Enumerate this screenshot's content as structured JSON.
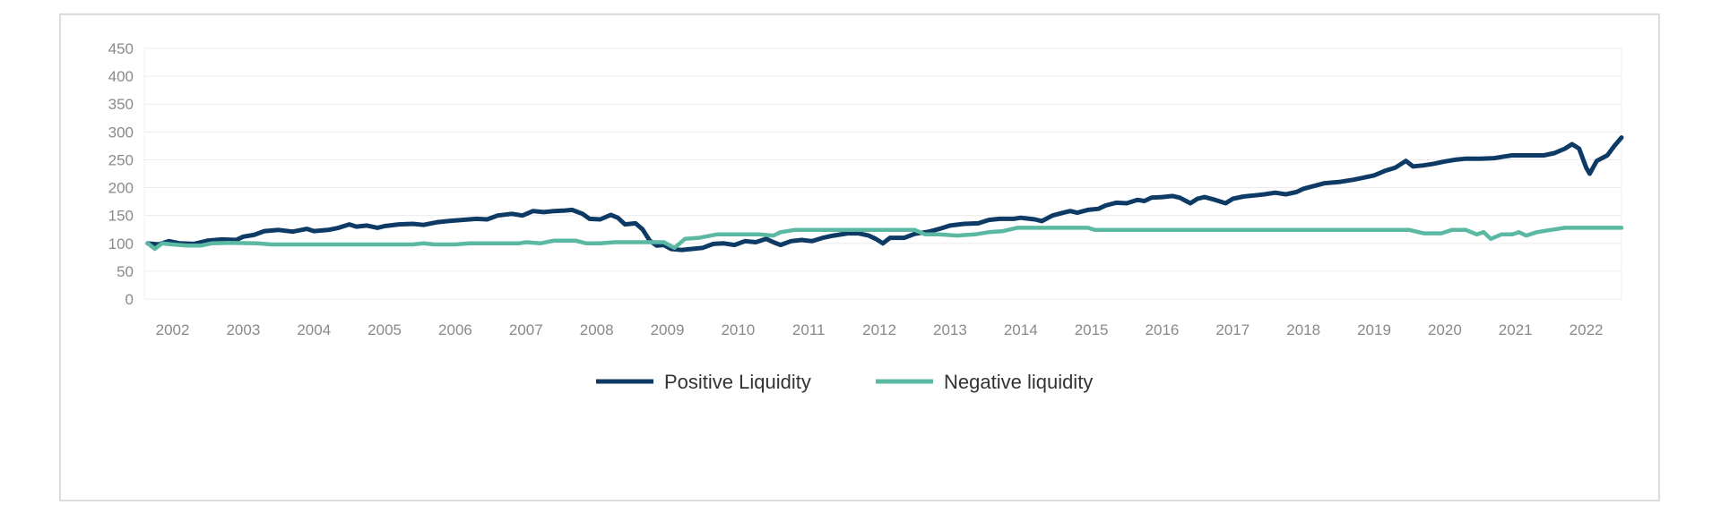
{
  "chart_data": {
    "type": "line",
    "title": "",
    "xlabel": "",
    "ylabel": "",
    "ylim": [
      0,
      450
    ],
    "yticks": [
      0,
      50,
      100,
      150,
      200,
      250,
      300,
      350,
      400,
      450
    ],
    "xlim": [
      2001.6,
      2022.5
    ],
    "xtick_labels": [
      "2002",
      "2003",
      "2004",
      "2005",
      "2006",
      "2007",
      "2008",
      "2009",
      "2010",
      "2011",
      "2012",
      "2013",
      "2014",
      "2015",
      "2016",
      "2017",
      "2018",
      "2019",
      "2020",
      "2021",
      "2022"
    ],
    "grid": "horizontal",
    "legend": "bottom-center",
    "series": [
      {
        "name": "Positive Liquidity",
        "color": "#0d3b66",
        "points": [
          [
            2001.65,
            100
          ],
          [
            2001.8,
            98
          ],
          [
            2001.95,
            104
          ],
          [
            2002.1,
            100
          ],
          [
            2002.3,
            99
          ],
          [
            2002.5,
            105
          ],
          [
            2002.7,
            107
          ],
          [
            2002.9,
            106
          ],
          [
            2003.0,
            112
          ],
          [
            2003.15,
            115
          ],
          [
            2003.3,
            122
          ],
          [
            2003.5,
            124
          ],
          [
            2003.7,
            121
          ],
          [
            2003.9,
            126
          ],
          [
            2004.0,
            122
          ],
          [
            2004.2,
            124
          ],
          [
            2004.35,
            128
          ],
          [
            2004.5,
            134
          ],
          [
            2004.6,
            130
          ],
          [
            2004.75,
            132
          ],
          [
            2004.9,
            128
          ],
          [
            2005.0,
            131
          ],
          [
            2005.2,
            134
          ],
          [
            2005.4,
            135
          ],
          [
            2005.55,
            133
          ],
          [
            2005.75,
            138
          ],
          [
            2005.9,
            140
          ],
          [
            2006.1,
            142
          ],
          [
            2006.3,
            144
          ],
          [
            2006.45,
            143
          ],
          [
            2006.6,
            150
          ],
          [
            2006.8,
            153
          ],
          [
            2006.95,
            150
          ],
          [
            2007.1,
            158
          ],
          [
            2007.25,
            156
          ],
          [
            2007.4,
            158
          ],
          [
            2007.55,
            159
          ],
          [
            2007.65,
            160
          ],
          [
            2007.8,
            153
          ],
          [
            2007.9,
            144
          ],
          [
            2008.05,
            143
          ],
          [
            2008.2,
            151
          ],
          [
            2008.3,
            146
          ],
          [
            2008.4,
            134
          ],
          [
            2008.55,
            136
          ],
          [
            2008.65,
            125
          ],
          [
            2008.75,
            105
          ],
          [
            2008.85,
            96
          ],
          [
            2008.95,
            97
          ],
          [
            2009.05,
            90
          ],
          [
            2009.2,
            88
          ],
          [
            2009.35,
            90
          ],
          [
            2009.5,
            92
          ],
          [
            2009.65,
            99
          ],
          [
            2009.8,
            100
          ],
          [
            2009.95,
            97
          ],
          [
            2010.1,
            104
          ],
          [
            2010.25,
            102
          ],
          [
            2010.4,
            108
          ],
          [
            2010.5,
            102
          ],
          [
            2010.6,
            97
          ],
          [
            2010.75,
            104
          ],
          [
            2010.9,
            106
          ],
          [
            2011.05,
            104
          ],
          [
            2011.2,
            110
          ],
          [
            2011.35,
            114
          ],
          [
            2011.55,
            118
          ],
          [
            2011.7,
            118
          ],
          [
            2011.85,
            114
          ],
          [
            2011.95,
            108
          ],
          [
            2012.05,
            100
          ],
          [
            2012.15,
            110
          ],
          [
            2012.35,
            110
          ],
          [
            2012.5,
            117
          ],
          [
            2012.7,
            121
          ],
          [
            2012.85,
            126
          ],
          [
            2013.0,
            132
          ],
          [
            2013.2,
            135
          ],
          [
            2013.4,
            136
          ],
          [
            2013.55,
            142
          ],
          [
            2013.7,
            144
          ],
          [
            2013.9,
            144
          ],
          [
            2014.0,
            146
          ],
          [
            2014.2,
            143
          ],
          [
            2014.3,
            140
          ],
          [
            2014.45,
            150
          ],
          [
            2014.6,
            155
          ],
          [
            2014.7,
            158
          ],
          [
            2014.8,
            155
          ],
          [
            2014.95,
            160
          ],
          [
            2015.1,
            162
          ],
          [
            2015.2,
            168
          ],
          [
            2015.35,
            173
          ],
          [
            2015.5,
            172
          ],
          [
            2015.65,
            178
          ],
          [
            2015.75,
            176
          ],
          [
            2015.85,
            182
          ],
          [
            2016.0,
            183
          ],
          [
            2016.15,
            185
          ],
          [
            2016.25,
            182
          ],
          [
            2016.4,
            172
          ],
          [
            2016.5,
            180
          ],
          [
            2016.6,
            183
          ],
          [
            2016.75,
            178
          ],
          [
            2016.9,
            172
          ],
          [
            2017.0,
            180
          ],
          [
            2017.15,
            184
          ],
          [
            2017.3,
            186
          ],
          [
            2017.45,
            188
          ],
          [
            2017.6,
            191
          ],
          [
            2017.75,
            188
          ],
          [
            2017.9,
            192
          ],
          [
            2018.0,
            198
          ],
          [
            2018.15,
            203
          ],
          [
            2018.3,
            208
          ],
          [
            2018.5,
            210
          ],
          [
            2018.7,
            214
          ],
          [
            2018.85,
            218
          ],
          [
            2019.0,
            222
          ],
          [
            2019.15,
            230
          ],
          [
            2019.3,
            236
          ],
          [
            2019.45,
            248
          ],
          [
            2019.55,
            238
          ],
          [
            2019.7,
            240
          ],
          [
            2019.85,
            243
          ],
          [
            2020.0,
            247
          ],
          [
            2020.15,
            250
          ],
          [
            2020.3,
            252
          ],
          [
            2020.5,
            252
          ],
          [
            2020.7,
            253
          ],
          [
            2020.85,
            256
          ],
          [
            2020.95,
            258
          ],
          [
            2021.1,
            258
          ],
          [
            2021.25,
            258
          ],
          [
            2021.4,
            258
          ],
          [
            2021.55,
            262
          ],
          [
            2021.7,
            270
          ],
          [
            2021.8,
            278
          ],
          [
            2021.9,
            270
          ],
          [
            2022.0,
            236
          ],
          [
            2022.05,
            225
          ],
          [
            2022.15,
            248
          ],
          [
            2022.3,
            258
          ],
          [
            2022.4,
            275
          ],
          [
            2022.5,
            290
          ]
        ]
      },
      {
        "name": "Negative liquidity",
        "color": "#5bb9a3",
        "points": [
          [
            2001.65,
            100
          ],
          [
            2001.75,
            90
          ],
          [
            2001.85,
            100
          ],
          [
            2002.0,
            98
          ],
          [
            2002.2,
            96
          ],
          [
            2002.4,
            96
          ],
          [
            2002.55,
            100
          ],
          [
            2002.8,
            101
          ],
          [
            2003.2,
            100
          ],
          [
            2003.4,
            98
          ],
          [
            2003.8,
            98
          ],
          [
            2004.2,
            98
          ],
          [
            2004.6,
            98
          ],
          [
            2005.0,
            98
          ],
          [
            2005.4,
            98
          ],
          [
            2005.55,
            100
          ],
          [
            2005.7,
            98
          ],
          [
            2006.0,
            98
          ],
          [
            2006.2,
            100
          ],
          [
            2006.6,
            100
          ],
          [
            2006.9,
            100
          ],
          [
            2007.0,
            102
          ],
          [
            2007.2,
            100
          ],
          [
            2007.4,
            105
          ],
          [
            2007.7,
            105
          ],
          [
            2007.85,
            100
          ],
          [
            2008.05,
            100
          ],
          [
            2008.25,
            102
          ],
          [
            2008.6,
            102
          ],
          [
            2008.95,
            102
          ],
          [
            2009.1,
            92
          ],
          [
            2009.25,
            108
          ],
          [
            2009.45,
            110
          ],
          [
            2009.7,
            116
          ],
          [
            2010.0,
            116
          ],
          [
            2010.3,
            116
          ],
          [
            2010.5,
            114
          ],
          [
            2010.6,
            120
          ],
          [
            2010.8,
            124
          ],
          [
            2011.1,
            124
          ],
          [
            2011.5,
            124
          ],
          [
            2011.9,
            124
          ],
          [
            2012.3,
            124
          ],
          [
            2012.5,
            124
          ],
          [
            2012.65,
            116
          ],
          [
            2012.85,
            116
          ],
          [
            2013.1,
            114
          ],
          [
            2013.35,
            116
          ],
          [
            2013.55,
            120
          ],
          [
            2013.75,
            122
          ],
          [
            2013.95,
            128
          ],
          [
            2014.2,
            128
          ],
          [
            2014.6,
            128
          ],
          [
            2014.95,
            128
          ],
          [
            2015.05,
            124
          ],
          [
            2015.5,
            124
          ],
          [
            2016.0,
            124
          ],
          [
            2016.5,
            124
          ],
          [
            2017.0,
            124
          ],
          [
            2017.5,
            124
          ],
          [
            2018.0,
            124
          ],
          [
            2018.5,
            124
          ],
          [
            2019.0,
            124
          ],
          [
            2019.5,
            124
          ],
          [
            2019.7,
            118
          ],
          [
            2019.95,
            118
          ],
          [
            2020.1,
            124
          ],
          [
            2020.3,
            124
          ],
          [
            2020.45,
            116
          ],
          [
            2020.55,
            120
          ],
          [
            2020.65,
            108
          ],
          [
            2020.8,
            116
          ],
          [
            2020.95,
            116
          ],
          [
            2021.05,
            120
          ],
          [
            2021.15,
            114
          ],
          [
            2021.3,
            120
          ],
          [
            2021.5,
            124
          ],
          [
            2021.7,
            128
          ],
          [
            2021.9,
            128
          ],
          [
            2022.1,
            128
          ],
          [
            2022.3,
            128
          ],
          [
            2022.5,
            128
          ]
        ]
      }
    ]
  }
}
